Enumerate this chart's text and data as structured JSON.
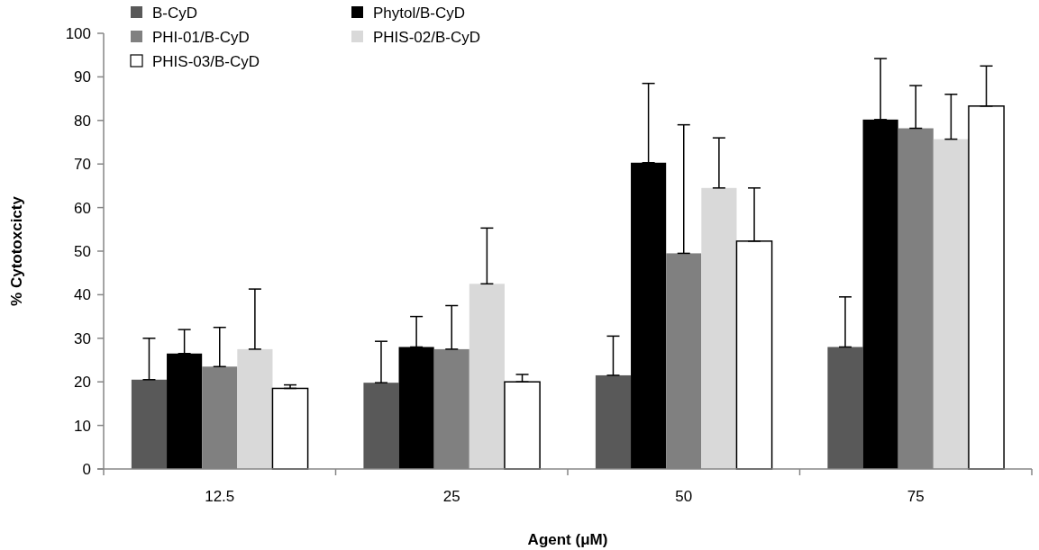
{
  "chart_data": {
    "type": "bar",
    "xlabel": "Agent (μM)",
    "ylabel": "% Cytotoxcicty",
    "categories": [
      "12.5",
      "25",
      "50",
      "75"
    ],
    "series": [
      {
        "name": "B-CyD",
        "color": "#595959",
        "values": [
          20.5,
          19.8,
          21.5,
          28
        ],
        "errors": [
          [
            20.5,
            30
          ],
          [
            19.8,
            29.3
          ],
          [
            21.5,
            30.5
          ],
          [
            28,
            39.5
          ]
        ]
      },
      {
        "name": "Phytol/B-CyD",
        "color": "#000000",
        "values": [
          26.5,
          28,
          70.3,
          80.2
        ],
        "errors": [
          [
            26.5,
            32
          ],
          [
            28,
            35
          ],
          [
            70.3,
            88.5
          ],
          [
            80.2,
            94.2
          ]
        ]
      },
      {
        "name": "PHI-01/B-CyD",
        "color": "#808080",
        "values": [
          23.5,
          27.5,
          49.5,
          78.2
        ],
        "errors": [
          [
            23.5,
            32.5
          ],
          [
            27.5,
            37.5
          ],
          [
            49.5,
            79
          ],
          [
            78.2,
            88
          ]
        ]
      },
      {
        "name": "PHIS-02/B-CyD",
        "color": "#d9d9d9",
        "values": [
          27.5,
          42.5,
          64.5,
          75.7
        ],
        "errors": [
          [
            27.5,
            41.3
          ],
          [
            42.5,
            55.3
          ],
          [
            64.5,
            76
          ],
          [
            75.7,
            86
          ]
        ]
      },
      {
        "name": "PHIS-03/B-CyD",
        "color": "#ffffff",
        "values": [
          18.5,
          20,
          52.3,
          83.3
        ],
        "errors": [
          [
            18.5,
            19.3
          ],
          [
            20,
            21.7
          ],
          [
            52.3,
            64.5
          ],
          [
            83.3,
            92.5
          ]
        ]
      }
    ],
    "ylim": [
      0,
      100
    ],
    "yticks": [
      0,
      10,
      20,
      30,
      40,
      50,
      60,
      70,
      80,
      90,
      100
    ],
    "grid": false,
    "legend": "top left"
  }
}
